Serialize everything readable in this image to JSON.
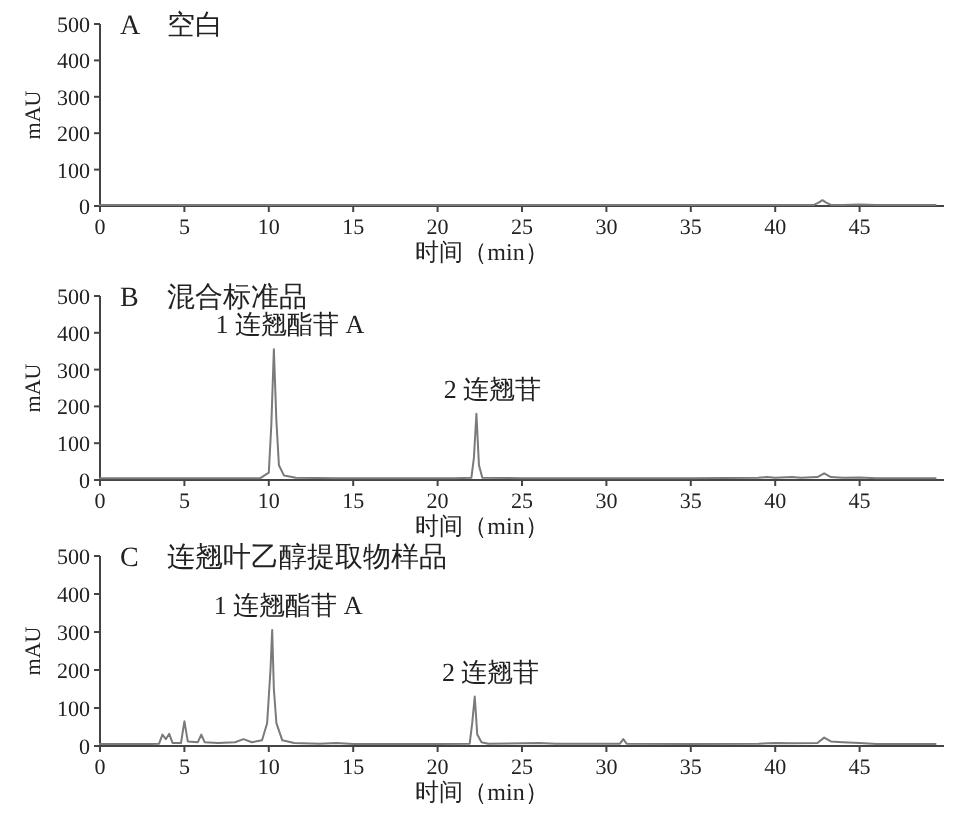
{
  "chart_data": [
    {
      "type": "line",
      "title": "A　空白",
      "xlabel": "时间（min）",
      "ylabel": "mAU",
      "color": "#7a7a7a",
      "xlim": [
        0,
        50
      ],
      "ylim": [
        0,
        500
      ],
      "xticks": [
        0,
        5,
        10,
        15,
        20,
        25,
        30,
        35,
        40,
        45
      ],
      "yticks": [
        0,
        100,
        200,
        300,
        400,
        500
      ],
      "x": [
        0,
        2,
        4,
        6,
        8,
        10,
        12,
        14,
        16,
        18,
        20,
        22,
        24,
        26,
        28,
        30,
        32,
        34,
        36,
        38,
        40,
        41,
        42,
        42.3,
        42.6,
        42.8,
        43.0,
        43.3,
        44,
        45,
        46,
        47,
        48,
        49.5
      ],
      "values": [
        3,
        3,
        3,
        3,
        3,
        3,
        3,
        3,
        3,
        3,
        3,
        3,
        3,
        3,
        3,
        3,
        3,
        3,
        3,
        3,
        3,
        3,
        3,
        3,
        10,
        16,
        10,
        3,
        3,
        4,
        3,
        3,
        3,
        3
      ]
    },
    {
      "type": "line",
      "title": "B　混合标准品",
      "xlabel": "时间（min）",
      "ylabel": "mAU",
      "color": "#7a7a7a",
      "xlim": [
        0,
        50
      ],
      "ylim": [
        0,
        500
      ],
      "xticks": [
        0,
        5,
        10,
        15,
        20,
        25,
        30,
        35,
        40,
        45
      ],
      "yticks": [
        0,
        100,
        200,
        300,
        400,
        500
      ],
      "annotations": [
        {
          "text": "1 连翘酯苷 A",
          "x": 10.3,
          "y": 355
        },
        {
          "text": "2 连翘苷",
          "x": 22.3,
          "y": 180
        }
      ],
      "x": [
        0,
        3,
        6,
        8,
        9.5,
        10.0,
        10.15,
        10.3,
        10.45,
        10.6,
        10.9,
        11.6,
        14,
        18,
        21,
        22.0,
        22.15,
        22.3,
        22.45,
        22.65,
        25,
        30,
        35,
        39,
        39.5,
        40,
        41,
        41.5,
        42.5,
        42.9,
        43.3,
        44,
        45,
        46,
        48,
        49.5
      ],
      "values": [
        5,
        5,
        5,
        5,
        5,
        20,
        150,
        355,
        160,
        40,
        12,
        6,
        5,
        5,
        5,
        6,
        60,
        180,
        40,
        6,
        5,
        5,
        5,
        6,
        8,
        6,
        8,
        6,
        8,
        18,
        8,
        6,
        7,
        5,
        5,
        5
      ]
    },
    {
      "type": "line",
      "title": "C　连翘叶乙醇提取物样品",
      "xlabel": "时间（min）",
      "ylabel": "mAU",
      "color": "#7a7a7a",
      "xlim": [
        0,
        50
      ],
      "ylim": [
        0,
        500
      ],
      "xticks": [
        0,
        5,
        10,
        15,
        20,
        25,
        30,
        35,
        40,
        45
      ],
      "yticks": [
        0,
        100,
        200,
        300,
        400,
        500
      ],
      "annotations": [
        {
          "text": "1 连翘酯苷 A",
          "x": 10.2,
          "y": 305
        },
        {
          "text": "2 连翘苷",
          "x": 22.2,
          "y": 130
        }
      ],
      "x": [
        0,
        3,
        3.5,
        3.7,
        3.9,
        4.1,
        4.3,
        4.8,
        5.0,
        5.2,
        5.8,
        6.0,
        6.2,
        7,
        8.0,
        8.5,
        9.0,
        9.6,
        9.9,
        10.0,
        10.1,
        10.2,
        10.3,
        10.45,
        10.8,
        11.5,
        13,
        14,
        15,
        20,
        21.9,
        22.05,
        22.2,
        22.35,
        22.6,
        23,
        26,
        27,
        30.8,
        31.0,
        31.2,
        35,
        39,
        40,
        41,
        42.5,
        42.9,
        43.3,
        44,
        45,
        46,
        48,
        49.5
      ],
      "values": [
        5,
        5,
        6,
        30,
        18,
        32,
        8,
        8,
        65,
        12,
        10,
        30,
        10,
        8,
        10,
        18,
        10,
        15,
        60,
        130,
        200,
        305,
        150,
        60,
        15,
        8,
        6,
        8,
        5,
        5,
        6,
        60,
        130,
        30,
        10,
        6,
        8,
        6,
        6,
        18,
        6,
        5,
        6,
        8,
        7,
        8,
        22,
        12,
        10,
        8,
        5,
        5,
        5
      ]
    }
  ]
}
